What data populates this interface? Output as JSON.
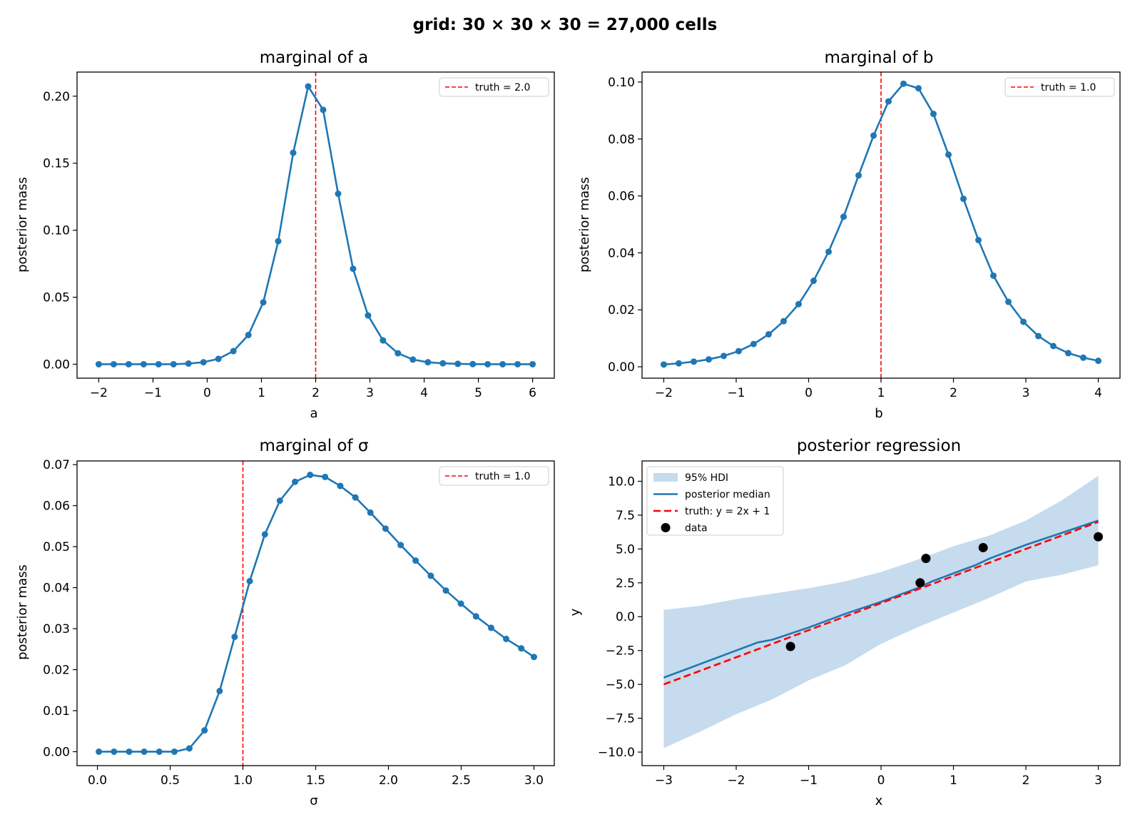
{
  "suptitle": "grid: 30 × 30 × 30 = 27,000 cells",
  "colors": {
    "series": "#1f77b4",
    "truth": "#ff0000",
    "band": "#c6dbed",
    "data": "#000000"
  },
  "chart_data": [
    {
      "type": "line",
      "title": "marginal of a",
      "xlabel": "a",
      "ylabel": "posterior mass",
      "xlim": [
        -2.4,
        6.4
      ],
      "ylim": [
        -0.0104,
        0.218
      ],
      "xticks": [
        -2,
        -1,
        0,
        1,
        2,
        3,
        4,
        5,
        6
      ],
      "xtick_labels": [
        "−2",
        "−1",
        "0",
        "1",
        "2",
        "3",
        "4",
        "5",
        "6"
      ],
      "yticks": [
        0,
        0.05,
        0.1,
        0.15,
        0.2
      ],
      "ytick_labels": [
        "0.00",
        "0.05",
        "0.10",
        "0.15",
        "0.20"
      ],
      "markers": true,
      "x": [
        -2,
        -1.724,
        -1.448,
        -1.172,
        -0.897,
        -0.621,
        -0.345,
        -0.069,
        0.207,
        0.483,
        0.759,
        1.034,
        1.31,
        1.586,
        1.862,
        2.138,
        2.414,
        2.69,
        2.966,
        3.241,
        3.517,
        3.793,
        4.069,
        4.345,
        4.621,
        4.897,
        5.172,
        5.448,
        5.724,
        6
      ],
      "y": [
        0,
        0,
        0,
        0,
        0,
        0,
        0.0005,
        0.0015,
        0.004,
        0.0098,
        0.0218,
        0.0462,
        0.0918,
        0.1578,
        0.2073,
        0.1898,
        0.1272,
        0.0712,
        0.0364,
        0.0178,
        0.0082,
        0.0035,
        0.0015,
        0.0007,
        0.0003,
        0.0001,
        0,
        0,
        0,
        0
      ],
      "truth": {
        "x": 2.0,
        "label": "truth = 2.0"
      },
      "legend": "top-right"
    },
    {
      "type": "line",
      "title": "marginal of b",
      "xlabel": "b",
      "ylabel": "posterior mass",
      "xlim": [
        -2.3,
        4.3
      ],
      "ylim": [
        -0.004,
        0.1035
      ],
      "xticks": [
        -2,
        -1,
        0,
        1,
        2,
        3,
        4
      ],
      "xtick_labels": [
        "−2",
        "−1",
        "0",
        "1",
        "2",
        "3",
        "4"
      ],
      "yticks": [
        0,
        0.02,
        0.04,
        0.06,
        0.08,
        0.1
      ],
      "ytick_labels": [
        "0.00",
        "0.02",
        "0.04",
        "0.06",
        "0.08",
        "0.10"
      ],
      "markers": true,
      "x": [
        -2,
        -1.793,
        -1.586,
        -1.379,
        -1.172,
        -0.966,
        -0.759,
        -0.552,
        -0.345,
        -0.138,
        0.069,
        0.276,
        0.483,
        0.69,
        0.897,
        1.103,
        1.31,
        1.517,
        1.724,
        1.931,
        2.138,
        2.345,
        2.552,
        2.759,
        2.966,
        3.172,
        3.379,
        3.586,
        3.793,
        4
      ],
      "y": [
        0.0008,
        0.0012,
        0.0018,
        0.0026,
        0.0038,
        0.0055,
        0.008,
        0.0114,
        0.016,
        0.022,
        0.0302,
        0.0404,
        0.0527,
        0.0672,
        0.0812,
        0.0932,
        0.0994,
        0.0978,
        0.0888,
        0.0745,
        0.059,
        0.0445,
        0.032,
        0.0228,
        0.0158,
        0.0108,
        0.0073,
        0.0048,
        0.0032,
        0.0021
      ],
      "truth": {
        "x": 1.0,
        "label": "truth = 1.0"
      },
      "legend": "top-right"
    },
    {
      "type": "line",
      "title": "marginal of σ",
      "xlabel": "σ",
      "ylabel": "posterior mass",
      "xlim": [
        -0.14,
        3.14
      ],
      "ylim": [
        -0.0034,
        0.0709
      ],
      "xticks": [
        0,
        0.5,
        1,
        1.5,
        2,
        2.5,
        3
      ],
      "xtick_labels": [
        "0.0",
        "0.5",
        "1.0",
        "1.5",
        "2.0",
        "2.5",
        "3.0"
      ],
      "yticks": [
        0,
        0.01,
        0.02,
        0.03,
        0.04,
        0.05,
        0.06,
        0.07
      ],
      "ytick_labels": [
        "0.00",
        "0.01",
        "0.02",
        "0.03",
        "0.04",
        "0.05",
        "0.06",
        "0.07"
      ],
      "markers": true,
      "x": [
        0.01,
        0.114,
        0.218,
        0.321,
        0.425,
        0.529,
        0.632,
        0.736,
        0.84,
        0.943,
        1.047,
        1.151,
        1.254,
        1.358,
        1.462,
        1.565,
        1.669,
        1.773,
        1.876,
        1.98,
        2.084,
        2.187,
        2.291,
        2.395,
        2.498,
        2.602,
        2.706,
        2.809,
        2.913,
        3.0
      ],
      "y": [
        0,
        0,
        0,
        0,
        0,
        0,
        0.0008,
        0.0052,
        0.0148,
        0.028,
        0.0416,
        0.053,
        0.0612,
        0.0658,
        0.0675,
        0.067,
        0.0648,
        0.062,
        0.0583,
        0.0544,
        0.0504,
        0.0466,
        0.0429,
        0.0393,
        0.0361,
        0.033,
        0.0302,
        0.0275,
        0.0252,
        0.0231
      ],
      "truth": {
        "x": 1.0,
        "label": "truth = 1.0"
      },
      "legend": "top-right"
    },
    {
      "type": "area",
      "title": "posterior regression",
      "xlabel": "x",
      "ylabel": "y",
      "xlim": [
        -3.3,
        3.3
      ],
      "ylim": [
        -11.0,
        11.5
      ],
      "xticks": [
        -3,
        -2,
        -1,
        0,
        1,
        2,
        3
      ],
      "xtick_labels": [
        "−3",
        "−2",
        "−1",
        "0",
        "1",
        "2",
        "3"
      ],
      "yticks": [
        -10,
        -7.5,
        -5,
        -2.5,
        0,
        2.5,
        5,
        7.5,
        10
      ],
      "ytick_labels": [
        "−10.0",
        "−7.5",
        "−5.0",
        "−2.5",
        "0.0",
        "2.5",
        "5.0",
        "7.5",
        "10.0"
      ],
      "band_x": [
        -3,
        -2.5,
        -2,
        -1.5,
        -1,
        -0.5,
        0,
        0.5,
        1,
        1.5,
        2,
        2.5,
        3
      ],
      "band_lower": [
        -9.7,
        -8.5,
        -7.2,
        -6.1,
        -4.7,
        -3.6,
        -2.0,
        -0.8,
        0.3,
        1.4,
        2.6,
        3.1,
        3.8
      ],
      "band_upper": [
        0.5,
        0.8,
        1.3,
        1.7,
        2.1,
        2.6,
        3.3,
        4.2,
        5.2,
        6.0,
        7.1,
        8.6,
        10.4
      ],
      "median_x": [
        -3,
        -2.5,
        -2,
        -1.7,
        -1.5,
        -1,
        -0.5,
        0,
        0.5,
        0.7,
        1,
        1.3,
        1.5,
        2,
        2.5,
        3
      ],
      "median_y": [
        -4.5,
        -3.5,
        -2.5,
        -1.9,
        -1.7,
        -0.8,
        0.2,
        1.1,
        2.1,
        2.6,
        3.2,
        3.8,
        4.3,
        5.3,
        6.2,
        7.1
      ],
      "truth_line": {
        "x": [
          -3,
          3
        ],
        "y": [
          -5,
          7
        ],
        "label": "truth: y = 2x + 1"
      },
      "points": {
        "x": [
          -1.25,
          0.54,
          0.62,
          1.41,
          3.0
        ],
        "y": [
          -2.2,
          2.5,
          4.3,
          5.1,
          5.9
        ],
        "label": "data"
      },
      "legend_labels": [
        "95% HDI",
        "posterior median",
        "truth: y = 2x + 1",
        "data"
      ],
      "legend": "top-left"
    }
  ]
}
